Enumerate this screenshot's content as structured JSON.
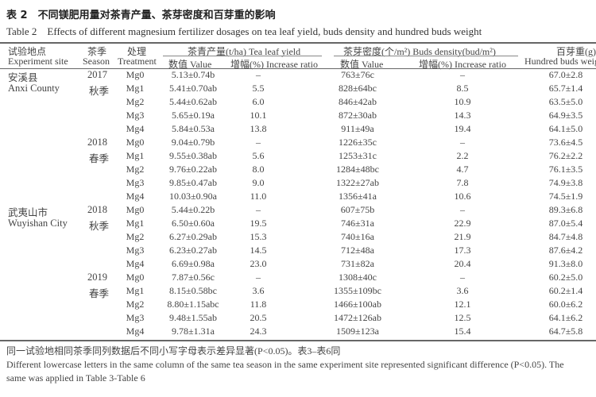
{
  "title_cn": "表 2　不同镁肥用量对茶青产量、茶芽密度和百芽重的影响",
  "title_en": "Table 2　Effects of different magnesium fertilizer dosages on tea leaf yield, buds density and hundred buds weight",
  "headers": {
    "site_cn": "试验地点",
    "site_en": "Experiment site",
    "season_cn": "茶季",
    "season_en": "Season",
    "treatment_cn": "处理",
    "treatment_en": "Treatment",
    "yield_group": "茶青产量(t/ha) Tea leaf yield",
    "density_group": "茶芽密度(个/m²) Buds density(bud/m²)",
    "value": "数值 Value",
    "increase": "增幅(%) Increase ratio",
    "hundred_cn": "百芽重(g)",
    "hundred_en": "Hundred buds weight"
  },
  "sites": [
    {
      "cn": "安溪县",
      "en": "Anxi County"
    },
    {
      "cn": "武夷山市",
      "en": "Wuyishan City"
    }
  ],
  "seasons": [
    {
      "year": "2017",
      "season": "秋季"
    },
    {
      "year": "2018",
      "season": "春季"
    },
    {
      "year": "2018",
      "season": "秋季"
    },
    {
      "year": "2019",
      "season": "春季"
    }
  ],
  "rows": [
    [
      "Mg0",
      "5.13±0.74b",
      "–",
      "763±76c",
      "–",
      "67.0±2.8"
    ],
    [
      "Mg1",
      "5.41±0.70ab",
      "5.5",
      "828±64bc",
      "8.5",
      "65.7±1.4"
    ],
    [
      "Mg2",
      "5.44±0.62ab",
      "6.0",
      "846±42ab",
      "10.9",
      "63.5±5.0"
    ],
    [
      "Mg3",
      "5.65±0.19a",
      "10.1",
      "872±30ab",
      "14.3",
      "64.9±3.5"
    ],
    [
      "Mg4",
      "5.84±0.53a",
      "13.8",
      "911±49a",
      "19.4",
      "64.1±5.0"
    ],
    [
      "Mg0",
      "9.04±0.79b",
      "–",
      "1226±35c",
      "–",
      "73.6±4.5"
    ],
    [
      "Mg1",
      "9.55±0.38ab",
      "5.6",
      "1253±31c",
      "2.2",
      "76.2±2.2"
    ],
    [
      "Mg2",
      "9.76±0.22ab",
      "8.0",
      "1284±48bc",
      "4.7",
      "76.1±3.5"
    ],
    [
      "Mg3",
      "9.85±0.47ab",
      "9.0",
      "1322±27ab",
      "7.8",
      "74.9±3.8"
    ],
    [
      "Mg4",
      "10.03±0.90a",
      "11.0",
      "1356±41a",
      "10.6",
      "74.5±1.9"
    ],
    [
      "Mg0",
      "5.44±0.22b",
      "–",
      "607±75b",
      "–",
      "89.3±6.8"
    ],
    [
      "Mg1",
      "6.50±0.60a",
      "19.5",
      "746±31a",
      "22.9",
      "87.0±5.4"
    ],
    [
      "Mg2",
      "6.27±0.29ab",
      "15.3",
      "740±16a",
      "21.9",
      "84.7±4.8"
    ],
    [
      "Mg3",
      "6.23±0.27ab",
      "14.5",
      "712±48a",
      "17.3",
      "87.6±4.2"
    ],
    [
      "Mg4",
      "6.69±0.98a",
      "23.0",
      "731±82a",
      "20.4",
      "91.3±8.0"
    ],
    [
      "Mg0",
      "7.87±0.56c",
      "–",
      "1308±40c",
      "–",
      "60.2±5.0"
    ],
    [
      "Mg1",
      "8.15±0.58bc",
      "3.6",
      "1355±109bc",
      "3.6",
      "60.2±1.4"
    ],
    [
      "Mg2",
      "8.80±1.15abc",
      "11.8",
      "1466±100ab",
      "12.1",
      "60.0±6.2"
    ],
    [
      "Mg3",
      "9.48±1.55ab",
      "20.5",
      "1472±126ab",
      "12.5",
      "64.1±6.2"
    ],
    [
      "Mg4",
      "9.78±1.31a",
      "24.3",
      "1509±123a",
      "15.4",
      "64.7±5.8"
    ]
  ],
  "footnote_cn": "同一试验地相同茶季同列数据后不同小写字母表示差异显著(P<0.05)。表3–表6同",
  "footnote_en_1": "Different lowercase letters in the same column of the same tea season in the same experiment site represented significant difference (P<0.05). The",
  "footnote_en_2": "same was applied in Table 3-Table 6"
}
